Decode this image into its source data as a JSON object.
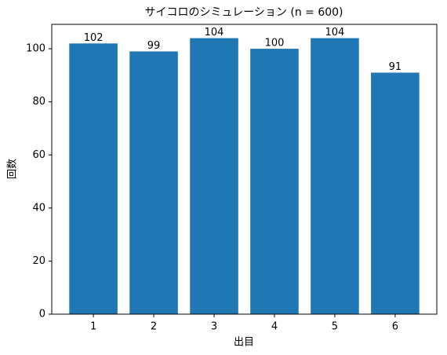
{
  "chart_data": {
    "type": "bar",
    "title": "サイコロのシミュレーション (n = 600)",
    "x_label": "出目",
    "y_label": "回数",
    "categories": [
      "1",
      "2",
      "3",
      "4",
      "5",
      "6"
    ],
    "values": [
      102,
      99,
      104,
      100,
      104,
      91
    ],
    "color": "#1f77b4",
    "ylim": [
      0,
      109.2
    ],
    "yticks": [
      0,
      20,
      40,
      60,
      80,
      100
    ],
    "grid": false
  }
}
